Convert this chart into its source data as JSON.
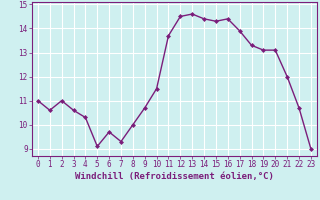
{
  "x": [
    0,
    1,
    2,
    3,
    4,
    5,
    6,
    7,
    8,
    9,
    10,
    11,
    12,
    13,
    14,
    15,
    16,
    17,
    18,
    19,
    20,
    21,
    22,
    23
  ],
  "y": [
    11.0,
    10.6,
    11.0,
    10.6,
    10.3,
    9.1,
    9.7,
    9.3,
    10.0,
    10.7,
    11.5,
    13.7,
    14.5,
    14.6,
    14.4,
    14.3,
    14.4,
    13.9,
    13.3,
    13.1,
    13.1,
    12.0,
    10.7,
    9.0
  ],
  "line_color": "#7b1e7b",
  "marker": "D",
  "markersize": 2,
  "linewidth": 1.0,
  "bg_color": "#cff0f0",
  "grid_color": "#ffffff",
  "xlabel": "Windchill (Refroidissement éolien,°C)",
  "xlabel_fontsize": 6.5,
  "tick_fontsize": 5.5,
  "xlim": [
    -0.5,
    23.5
  ],
  "ylim": [
    8.7,
    15.1
  ],
  "yticks": [
    9,
    10,
    11,
    12,
    13,
    14,
    15
  ],
  "xticks": [
    0,
    1,
    2,
    3,
    4,
    5,
    6,
    7,
    8,
    9,
    10,
    11,
    12,
    13,
    14,
    15,
    16,
    17,
    18,
    19,
    20,
    21,
    22,
    23
  ]
}
